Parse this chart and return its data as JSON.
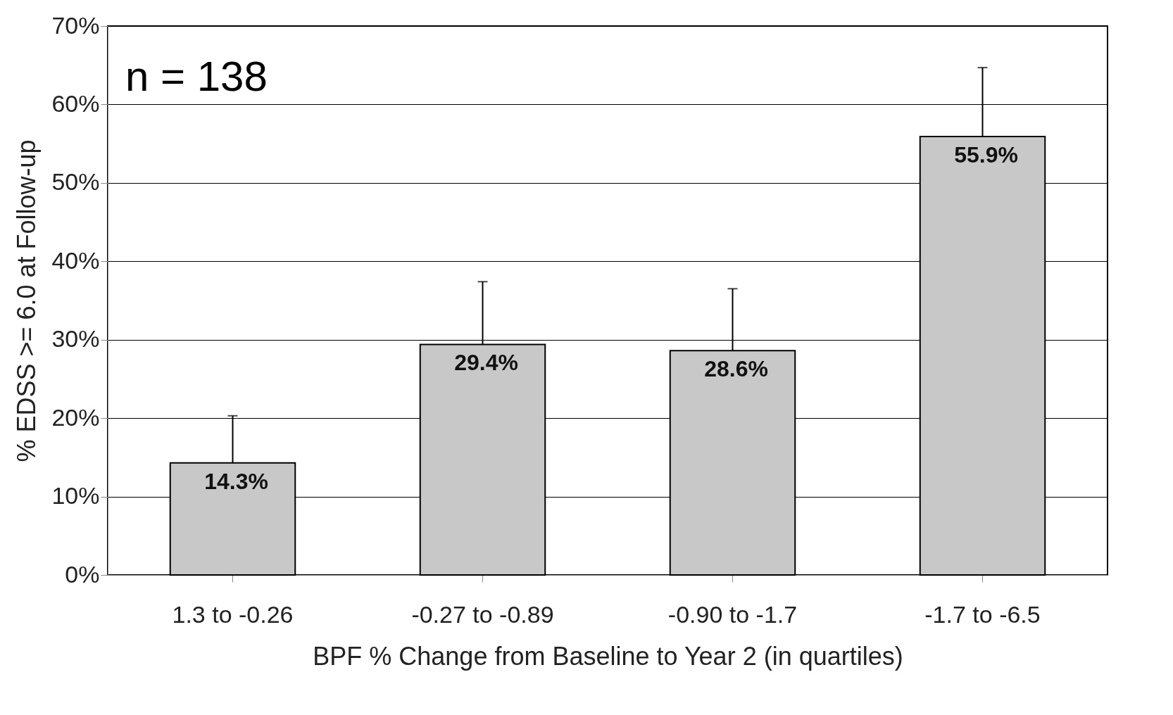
{
  "chart_data": {
    "type": "bar",
    "categories": [
      "1.3 to -0.26",
      "-0.27 to -0.89",
      "-0.90 to -1.7",
      "-1.7 to -6.5"
    ],
    "values": [
      14.3,
      29.4,
      28.6,
      55.9
    ],
    "value_labels": [
      "14.3%",
      "29.4%",
      "28.6%",
      "55.9%"
    ],
    "errors": [
      [
        14.3,
        20.3
      ],
      [
        29.4,
        37.4
      ],
      [
        28.6,
        36.5
      ],
      [
        55.9,
        64.7
      ]
    ],
    "color": "#c8c8c8",
    "xlabel": "BPF % Change from Baseline to Year 2 (in quartiles)",
    "ylabel": "% EDSS >= 6.0 at Follow-up",
    "ylim": [
      0,
      70
    ],
    "yticks": [
      {
        "value": 0,
        "label": "0%"
      },
      {
        "value": 10,
        "label": "10%"
      },
      {
        "value": 20,
        "label": "20%"
      },
      {
        "value": 30,
        "label": "30%"
      },
      {
        "value": 40,
        "label": "40%"
      },
      {
        "value": 50,
        "label": "50%"
      },
      {
        "value": 60,
        "label": "60%"
      },
      {
        "value": 70,
        "label": "70%"
      }
    ],
    "grid": "y",
    "annotations": [
      "n = 138"
    ]
  }
}
